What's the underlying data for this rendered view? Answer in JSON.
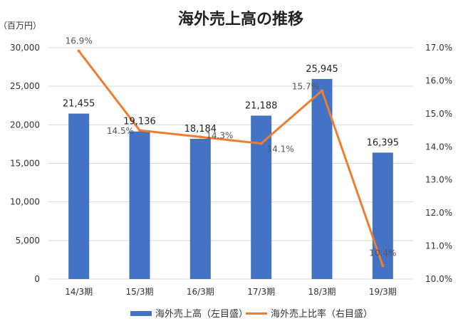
{
  "chart_data": {
    "type": "bar",
    "title": "海外売上高の推移",
    "unit_label": "（百万円）",
    "categories": [
      "14/3期",
      "15/3期",
      "16/3期",
      "17/3期",
      "18/3期",
      "19/3期"
    ],
    "series": [
      {
        "name": "海外売上高（左目盛）",
        "type": "bar",
        "axis": "left",
        "color": "#4472C4",
        "values": [
          21455,
          19136,
          18184,
          21188,
          25945,
          16395
        ],
        "labels": [
          "21,455",
          "19,136",
          "18,184",
          "21,188",
          "25,945",
          "16,395"
        ]
      },
      {
        "name": "海外売上比率（右目盛）",
        "type": "line",
        "axis": "right",
        "color": "#ED7D31",
        "values": [
          16.9,
          14.5,
          14.3,
          14.1,
          15.7,
          10.4
        ],
        "labels": [
          "16.9%",
          "14.5%",
          "14.3%",
          "14.1%",
          "15.7%",
          "10.4%"
        ]
      }
    ],
    "y_left": {
      "ylim": [
        0,
        30000
      ],
      "ticks": [
        0,
        5000,
        10000,
        15000,
        20000,
        25000,
        30000
      ],
      "tick_labels": [
        "0",
        "5,000",
        "10,000",
        "15,000",
        "20,000",
        "25,000",
        "30,000"
      ]
    },
    "y_right": {
      "ylim": [
        10.0,
        17.0
      ],
      "ticks": [
        10,
        11,
        12,
        13,
        14,
        15,
        16,
        17
      ],
      "tick_labels": [
        "10.0%",
        "11.0%",
        "12.0%",
        "13.0%",
        "14.0%",
        "15.0%",
        "16.0%",
        "17.0%"
      ]
    },
    "grid": true,
    "legend": "bottom"
  }
}
